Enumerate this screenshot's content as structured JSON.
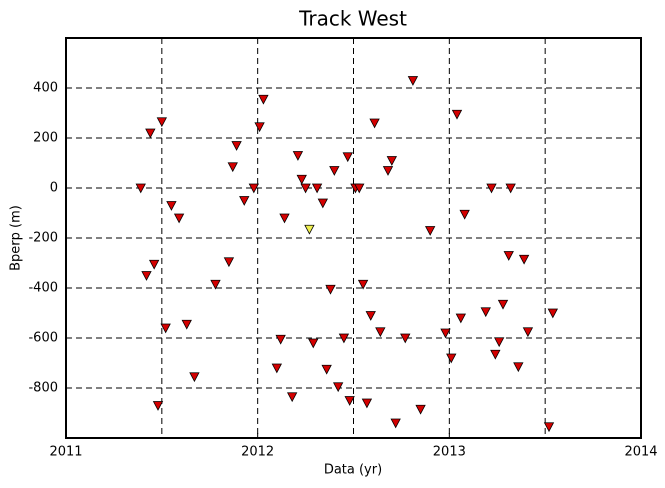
{
  "chart_data": {
    "type": "scatter",
    "title": "Track West",
    "x_label": "Data (yr)",
    "y_label": "Bperp (m)",
    "xlim": [
      2011,
      2014
    ],
    "xticks": [
      2011,
      2012,
      2013,
      2014
    ],
    "x_grid": [
      2011.5,
      2012,
      2012.5,
      2013,
      2013.5
    ],
    "ylim": [
      -1000,
      600
    ],
    "yticks": [
      -800,
      -600,
      -400,
      -200,
      0,
      200,
      400
    ],
    "grid": true,
    "series": [
      {
        "color": "#d40000",
        "x": [
          2011.39,
          2011.44,
          2011.5,
          2011.42,
          2011.46,
          2011.52,
          2011.48,
          2011.55,
          2011.59,
          2011.63,
          2011.67,
          2011.78,
          2011.85,
          2011.87,
          2011.89,
          2011.93,
          2011.98,
          2012.01,
          2012.03,
          2012.1,
          2012.12,
          2012.14,
          2012.18,
          2012.21,
          2012.23,
          2012.25,
          2012.29,
          2012.31,
          2012.34,
          2012.36,
          2012.38,
          2012.4,
          2012.42,
          2012.45,
          2012.47,
          2012.48,
          2012.51,
          2012.53,
          2012.55,
          2012.57,
          2012.59,
          2012.61,
          2012.64,
          2012.68,
          2012.7,
          2012.72,
          2012.77,
          2012.81,
          2012.85,
          2012.9,
          2012.98,
          2013.01,
          2013.04,
          2013.06,
          2013.08,
          2013.19,
          2013.22,
          2013.24,
          2013.26,
          2013.28,
          2013.31,
          2013.32,
          2013.36,
          2013.39,
          2013.41,
          2013.52,
          2013.54
        ],
        "values": [
          0,
          220,
          265,
          -350,
          -305,
          -560,
          -870,
          -70,
          -120,
          -545,
          -755,
          -385,
          -295,
          85,
          170,
          -50,
          0,
          245,
          355,
          -720,
          -605,
          -120,
          -835,
          130,
          35,
          0,
          -620,
          0,
          -60,
          -725,
          -405,
          70,
          -795,
          -600,
          125,
          -850,
          0,
          0,
          -385,
          -860,
          -510,
          260,
          -575,
          70,
          110,
          -940,
          -600,
          430,
          -885,
          -170,
          -580,
          -680,
          295,
          -520,
          -105,
          -495,
          0,
          -665,
          -615,
          -465,
          -270,
          0,
          -715,
          -285,
          -575,
          -955,
          -500
        ]
      },
      {
        "color": "#f0f050",
        "x": [
          2012.27
        ],
        "values": [
          -165
        ]
      }
    ]
  }
}
